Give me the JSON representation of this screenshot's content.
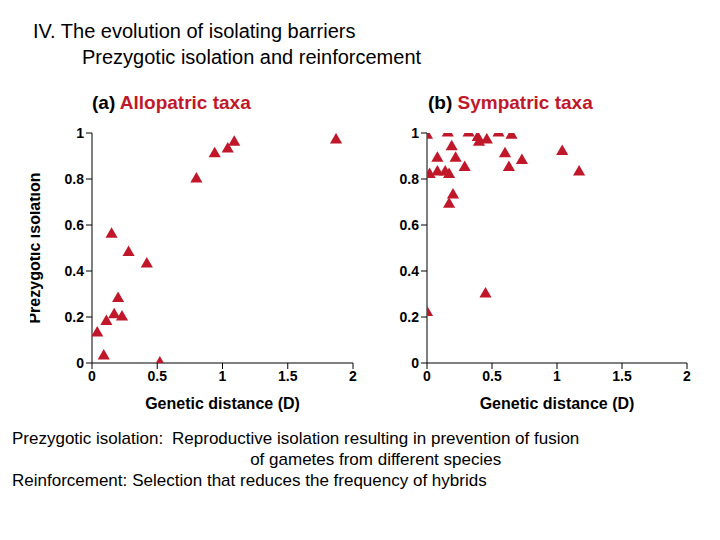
{
  "title": "IV. The evolution of isolating barriers",
  "subtitle": "Prezygotic isolation and reinforcement",
  "chart_data": [
    {
      "type": "scatter",
      "title": "(a) Allopatric taxa",
      "x": [
        0.04,
        0.09,
        0.15,
        0.11,
        0.17,
        0.2,
        0.23,
        0.28,
        0.42,
        0.52,
        0.8,
        0.94,
        1.04,
        1.09,
        1.87
      ],
      "values": [
        0.13,
        0.03,
        0.56,
        0.18,
        0.21,
        0.28,
        0.2,
        0.48,
        0.43,
        0,
        0.8,
        0.91,
        0.93,
        0.96,
        0.97
      ],
      "color": "#c0182a",
      "marker": "triangle",
      "xlim": [
        0,
        2
      ],
      "ylim": [
        0,
        1
      ],
      "xticks": [
        0,
        0.5,
        1,
        1.5,
        2
      ],
      "yticks": [
        0,
        0.2,
        0.4,
        0.6,
        0.8,
        1
      ],
      "x_label": "Genetic distance (D)",
      "y_label": "Prezygotic isolation"
    },
    {
      "type": "scatter",
      "title": "(b) Sympatric taxa",
      "x": [
        0,
        0.02,
        0,
        0.08,
        0.08,
        0.14,
        0.16,
        0.17,
        0.19,
        0.17,
        0.2,
        0.22,
        0.29,
        0.32,
        0.39,
        0.4,
        0.46,
        0.45,
        0.55,
        0.6,
        0.63,
        0.65,
        0.73,
        1.04,
        1.17
      ],
      "values": [
        0.99,
        0.82,
        0.22,
        0.89,
        0.83,
        0.83,
        1,
        0.82,
        0.94,
        0.69,
        0.73,
        0.89,
        0.85,
        1,
        0.98,
        0.96,
        0.97,
        0.3,
        1,
        0.91,
        0.85,
        0.99,
        0.88,
        0.92,
        0.83
      ],
      "color": "#c0182a",
      "marker": "triangle",
      "xlim": [
        0,
        2
      ],
      "ylim": [
        0,
        1
      ],
      "xticks": [
        0,
        0.5,
        1,
        1.5,
        2
      ],
      "yticks": [
        0,
        0.2,
        0.4,
        0.6,
        0.8,
        1
      ],
      "x_label": "Genetic distance (D)"
    }
  ],
  "definitions": [
    {
      "term": "Prezygotic isolation:",
      "definition": "Reproductive isolation resulting in prevention of fusion of gametes from different species"
    },
    {
      "term": "Reinforcement:",
      "definition": "Selection that reduces the frequency of hybrids"
    }
  ]
}
